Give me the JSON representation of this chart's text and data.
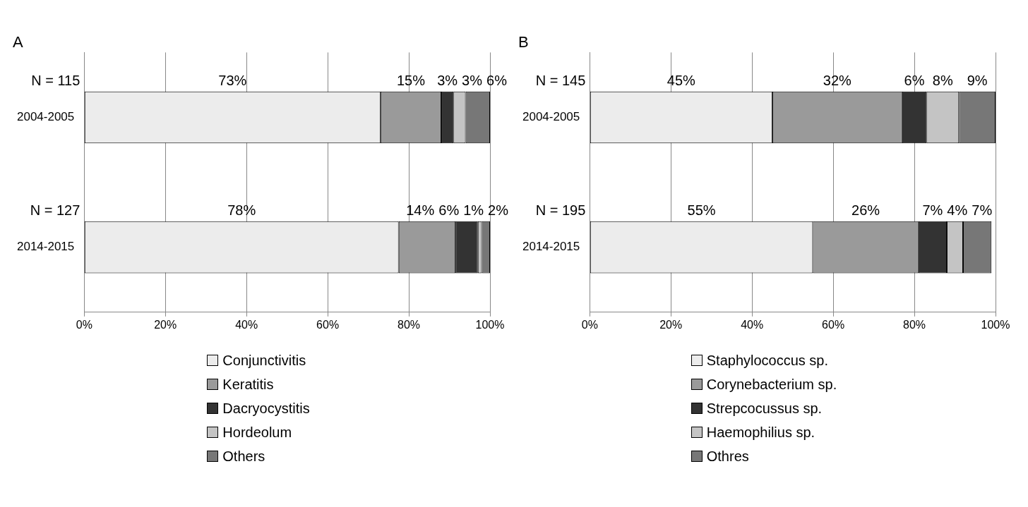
{
  "chart_data": [
    {
      "type": "bar",
      "title": "A",
      "orientation": "horizontal",
      "stacked": true,
      "categories": [
        "2004-2005",
        "2014-2015"
      ],
      "series": [
        {
          "name": "Conjunctivitis",
          "color": "#ececec",
          "values": [
            73,
            77.5
          ]
        },
        {
          "name": "Keratitis",
          "color": "#9a9a9a",
          "values": [
            15,
            14
          ]
        },
        {
          "name": "Dacryocystitis",
          "color": "#333333",
          "values": [
            3,
            5.5
          ]
        },
        {
          "name": "Hordeolum",
          "color": "#c4c4c4",
          "values": [
            3,
            1
          ]
        },
        {
          "name": "Others",
          "color": "#777777",
          "values": [
            6,
            2
          ]
        }
      ],
      "xlim": [
        0,
        100
      ],
      "xticks": [
        {
          "value": 0,
          "label": "0%"
        },
        {
          "value": 20,
          "label": "20%"
        },
        {
          "value": 40,
          "label": "40%"
        },
        {
          "value": 60,
          "label": "60%"
        },
        {
          "value": 80,
          "label": "80%"
        },
        {
          "value": 100,
          "label": "100%"
        }
      ],
      "value_labels": [
        [
          "73%",
          "78%"
        ],
        [
          "15%",
          "14%"
        ],
        [
          "3%",
          "6%"
        ],
        [
          "3%",
          "1%"
        ],
        [
          "6%",
          "2%"
        ]
      ],
      "annotations": [
        "N = 115",
        "N = 127"
      ],
      "grid": "x",
      "legend": "bottom"
    },
    {
      "type": "bar",
      "title": "B",
      "orientation": "horizontal",
      "stacked": true,
      "categories": [
        "2004-2005",
        "2014-2015"
      ],
      "series": [
        {
          "name": "Staphylococcus sp.",
          "color": "#ececec",
          "values": [
            45,
            55
          ]
        },
        {
          "name": "Corynebacterium sp.",
          "color": "#9a9a9a",
          "values": [
            32,
            26
          ]
        },
        {
          "name": "Strepcocussus sp.",
          "color": "#333333",
          "values": [
            6,
            7
          ]
        },
        {
          "name": "Haemophilius sp.",
          "color": "#c4c4c4",
          "values": [
            8,
            4
          ]
        },
        {
          "name": "Othres",
          "color": "#777777",
          "values": [
            9,
            7
          ]
        }
      ],
      "xlim": [
        0,
        100
      ],
      "xticks": [
        {
          "value": 0,
          "label": "0%"
        },
        {
          "value": 20,
          "label": "20%"
        },
        {
          "value": 40,
          "label": "40%"
        },
        {
          "value": 60,
          "label": "60%"
        },
        {
          "value": 80,
          "label": "80%"
        },
        {
          "value": 100,
          "label": "100%"
        }
      ],
      "value_labels": [
        [
          "45%",
          "55%"
        ],
        [
          "32%",
          "26%"
        ],
        [
          "6%",
          "7%"
        ],
        [
          "8%",
          "4%"
        ],
        [
          "9%",
          "7%"
        ]
      ],
      "annotations": [
        "N = 145",
        "N = 195"
      ],
      "grid": "x",
      "legend": "bottom"
    }
  ]
}
